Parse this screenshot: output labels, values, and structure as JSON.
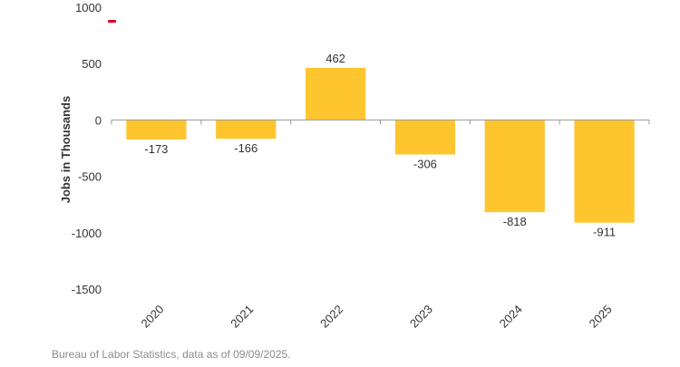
{
  "chart_data": {
    "type": "bar",
    "categories": [
      "2020",
      "2021",
      "2022",
      "2023",
      "2024",
      "2025"
    ],
    "values": [
      -173,
      -166,
      462,
      -306,
      -818,
      -911
    ],
    "data_labels": [
      "-173",
      "-166",
      "462",
      "-306",
      "-818",
      "-911"
    ],
    "title": "",
    "xlabel": "",
    "ylabel": "Jobs in Thousands",
    "ylim": [
      -1500,
      1000
    ],
    "yticks": [
      1000,
      500,
      0,
      -500,
      -1000,
      -1500
    ],
    "ytick_labels": [
      "1000",
      "500",
      "0",
      "-500",
      "-1000",
      "-1500"
    ],
    "grid": false,
    "legend": "none",
    "bar_color": "#FFC52F",
    "accent_color": "#E0001B"
  },
  "source_note": "Bureau of Labor Statistics, data as of 09/09/2025."
}
